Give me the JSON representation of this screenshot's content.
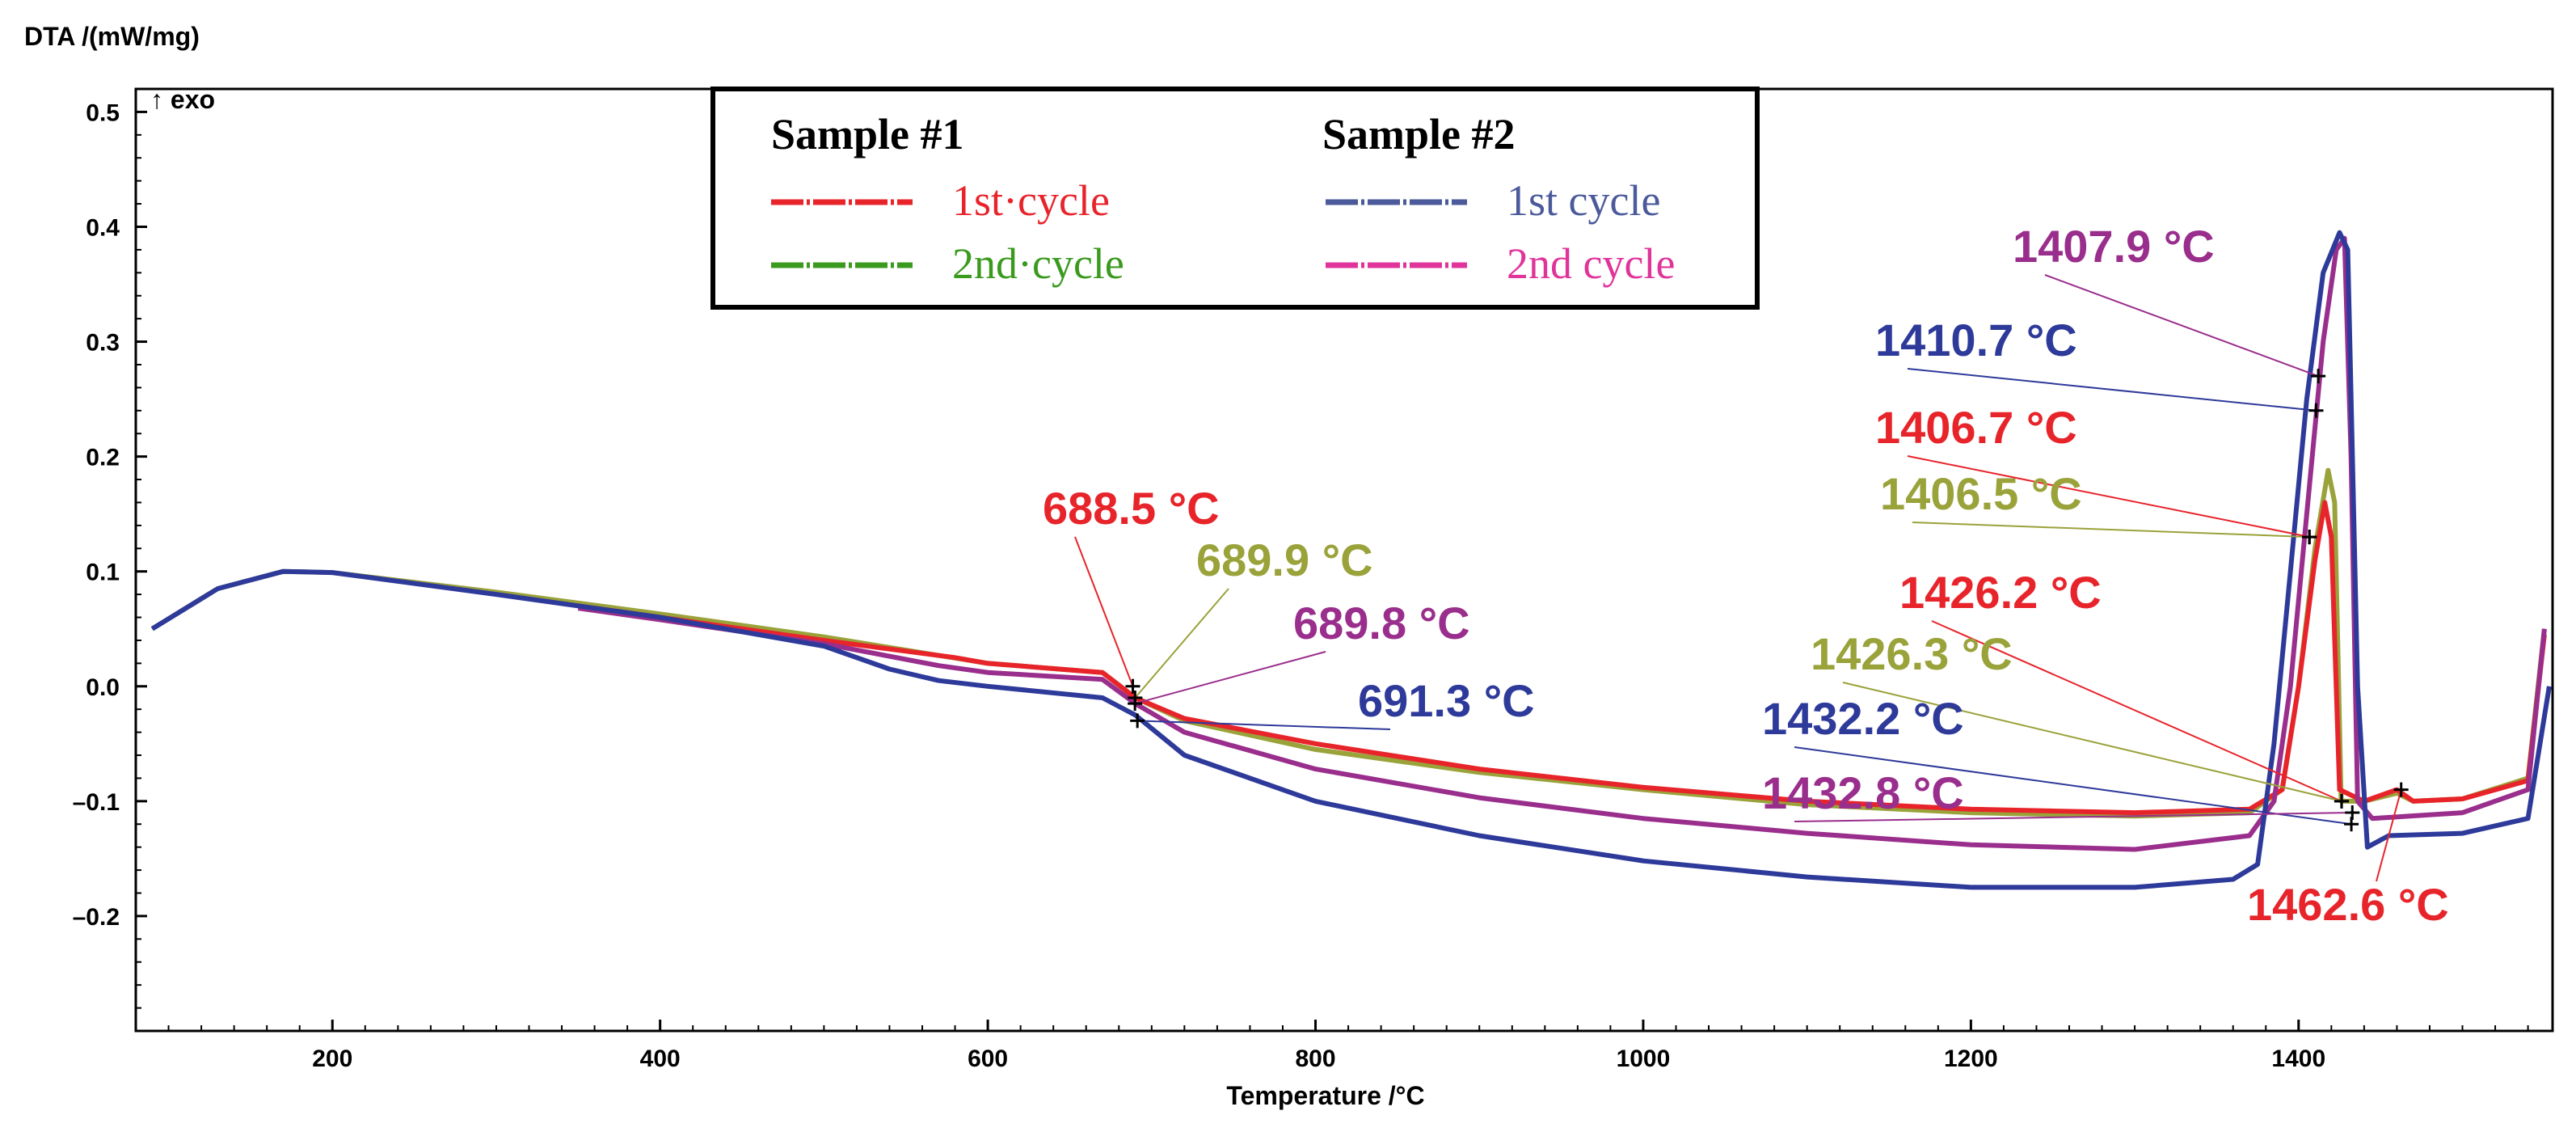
{
  "chart_data": {
    "type": "line",
    "ylabel": "DTA /(mW/mg)",
    "xlabel": "Temperature /°C",
    "exo_marker": "↑ exo",
    "xlim": [
      80,
      1555
    ],
    "ylim": [
      -0.3,
      0.52
    ],
    "xticks": [
      200,
      400,
      600,
      800,
      1000,
      1200,
      1400
    ],
    "yticks": [
      0.5,
      0.4,
      0.3,
      0.2,
      0.1,
      0.0,
      -0.1,
      -0.2
    ],
    "ytick_labels": [
      "0.5",
      "0.4",
      "0.3",
      "0.2",
      "0.1",
      "0.0",
      "–0.1",
      "–0.2"
    ],
    "grid": false,
    "legend": {
      "placement": "top-center",
      "groups": [
        {
          "title": "Sample #1",
          "items": [
            {
              "label": "1st·cycle",
              "color": "#e8242b"
            },
            {
              "label": "2nd·cycle",
              "color": "#3a9a1e"
            }
          ]
        },
        {
          "title": "Sample #2",
          "items": [
            {
              "label": "1st cycle",
              "color": "#4a5a9a"
            },
            {
              "label": "2nd cycle",
              "color": "#e0349a"
            }
          ]
        }
      ]
    },
    "series": [
      {
        "color": "#9aa23a",
        "points": [
          [
            90,
            0.05
          ],
          [
            130,
            0.085
          ],
          [
            170,
            0.1
          ],
          [
            200,
            0.099
          ],
          [
            300,
            0.082
          ],
          [
            400,
            0.063
          ],
          [
            500,
            0.043
          ],
          [
            600,
            0.02
          ],
          [
            670,
            0.012
          ],
          [
            690,
            -0.01
          ],
          [
            720,
            -0.03
          ],
          [
            800,
            -0.055
          ],
          [
            900,
            -0.075
          ],
          [
            1000,
            -0.09
          ],
          [
            1100,
            -0.103
          ],
          [
            1200,
            -0.11
          ],
          [
            1300,
            -0.113
          ],
          [
            1370,
            -0.11
          ],
          [
            1390,
            -0.09
          ],
          [
            1400,
            0.0
          ],
          [
            1410,
            0.12
          ],
          [
            1418,
            0.188
          ],
          [
            1422,
            0.16
          ],
          [
            1426,
            -0.1
          ],
          [
            1440,
            -0.1
          ],
          [
            1460,
            -0.093
          ],
          [
            1470,
            -0.1
          ],
          [
            1500,
            -0.098
          ],
          [
            1540,
            -0.08
          ],
          [
            1550,
            0.05
          ]
        ]
      },
      {
        "color": "#e8242b",
        "points": [
          [
            350,
            0.07
          ],
          [
            400,
            0.06
          ],
          [
            500,
            0.04
          ],
          [
            580,
            0.025
          ],
          [
            600,
            0.02
          ],
          [
            670,
            0.012
          ],
          [
            690,
            -0.01
          ],
          [
            720,
            -0.028
          ],
          [
            800,
            -0.05
          ],
          [
            900,
            -0.072
          ],
          [
            1000,
            -0.088
          ],
          [
            1100,
            -0.1
          ],
          [
            1200,
            -0.107
          ],
          [
            1300,
            -0.11
          ],
          [
            1370,
            -0.107
          ],
          [
            1390,
            -0.09
          ],
          [
            1400,
            0.0
          ],
          [
            1410,
            0.11
          ],
          [
            1416,
            0.16
          ],
          [
            1420,
            0.13
          ],
          [
            1425,
            -0.09
          ],
          [
            1440,
            -0.1
          ],
          [
            1460,
            -0.09
          ],
          [
            1470,
            -0.1
          ],
          [
            1500,
            -0.098
          ],
          [
            1540,
            -0.082
          ],
          [
            1550,
            0.045
          ]
        ]
      },
      {
        "color": "#9a2e8c",
        "points": [
          [
            350,
            0.068
          ],
          [
            400,
            0.058
          ],
          [
            500,
            0.037
          ],
          [
            570,
            0.018
          ],
          [
            600,
            0.012
          ],
          [
            670,
            0.006
          ],
          [
            690,
            -0.015
          ],
          [
            720,
            -0.04
          ],
          [
            800,
            -0.072
          ],
          [
            900,
            -0.097
          ],
          [
            1000,
            -0.115
          ],
          [
            1100,
            -0.128
          ],
          [
            1200,
            -0.138
          ],
          [
            1300,
            -0.142
          ],
          [
            1370,
            -0.13
          ],
          [
            1385,
            -0.1
          ],
          [
            1395,
            0.0
          ],
          [
            1405,
            0.15
          ],
          [
            1415,
            0.3
          ],
          [
            1423,
            0.38
          ],
          [
            1428,
            0.39
          ],
          [
            1432,
            0.2
          ],
          [
            1436,
            -0.1
          ],
          [
            1445,
            -0.115
          ],
          [
            1500,
            -0.11
          ],
          [
            1540,
            -0.09
          ],
          [
            1550,
            0.05
          ]
        ]
      },
      {
        "color": "#2e3a9a",
        "points": [
          [
            90,
            0.05
          ],
          [
            130,
            0.085
          ],
          [
            170,
            0.1
          ],
          [
            200,
            0.099
          ],
          [
            300,
            0.08
          ],
          [
            400,
            0.06
          ],
          [
            500,
            0.035
          ],
          [
            540,
            0.015
          ],
          [
            570,
            0.005
          ],
          [
            600,
            0.0
          ],
          [
            670,
            -0.01
          ],
          [
            690,
            -0.025
          ],
          [
            720,
            -0.06
          ],
          [
            800,
            -0.1
          ],
          [
            900,
            -0.13
          ],
          [
            1000,
            -0.152
          ],
          [
            1100,
            -0.166
          ],
          [
            1200,
            -0.175
          ],
          [
            1300,
            -0.175
          ],
          [
            1360,
            -0.168
          ],
          [
            1375,
            -0.155
          ],
          [
            1385,
            -0.05
          ],
          [
            1395,
            0.1
          ],
          [
            1405,
            0.25
          ],
          [
            1415,
            0.36
          ],
          [
            1425,
            0.395
          ],
          [
            1430,
            0.38
          ],
          [
            1436,
            0.0
          ],
          [
            1442,
            -0.14
          ],
          [
            1455,
            -0.13
          ],
          [
            1500,
            -0.128
          ],
          [
            1540,
            -0.115
          ],
          [
            1553,
            0.0
          ]
        ]
      }
    ],
    "annotations": [
      {
        "text": "688.5 °C",
        "color": "#e8242b",
        "x": 688.5
      },
      {
        "text": "689.9 °C",
        "color": "#9aa23a",
        "x": 689.9
      },
      {
        "text": "689.8 °C",
        "color": "#9a2e8c",
        "x": 689.8
      },
      {
        "text": "691.3 °C",
        "color": "#2e3a9a",
        "x": 691.3
      },
      {
        "text": "1407.9 °C",
        "color": "#9a2e8c",
        "x": 1407.9
      },
      {
        "text": "1410.7 °C",
        "color": "#2e3a9a",
        "x": 1410.7
      },
      {
        "text": "1406.7 °C",
        "color": "#e8242b",
        "x": 1406.7
      },
      {
        "text": "1406.5 °C",
        "color": "#9aa23a",
        "x": 1406.5
      },
      {
        "text": "1426.2 °C",
        "color": "#e8242b",
        "x": 1426.2
      },
      {
        "text": "1426.3 °C",
        "color": "#9aa23a",
        "x": 1426.3
      },
      {
        "text": "1432.2 °C",
        "color": "#2e3a9a",
        "x": 1432.2
      },
      {
        "text": "1432.8 °C",
        "color": "#9a2e8c",
        "x": 1432.8
      },
      {
        "text": "1462.6 °C",
        "color": "#e8242b",
        "x": 1462.6
      }
    ]
  }
}
